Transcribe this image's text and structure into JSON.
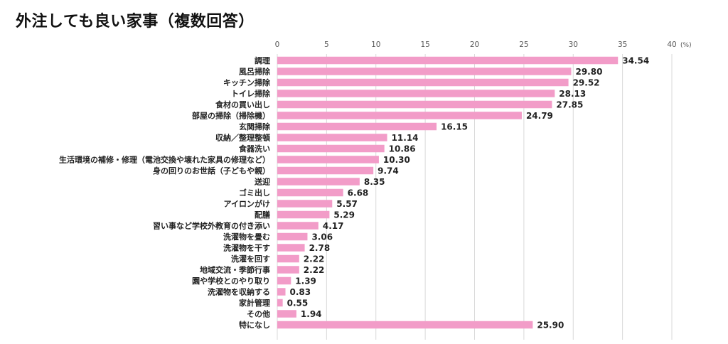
{
  "chart_data": {
    "type": "bar",
    "orientation": "horizontal",
    "title": "外注しても良い家事（複数回答）",
    "unit": "(%)",
    "xlim": [
      0,
      40
    ],
    "ticks": [
      0,
      5,
      10,
      15,
      20,
      25,
      30,
      35,
      40
    ],
    "grid": true,
    "bar_color": "#f29cc8",
    "categories": [
      "調理",
      "風呂掃除",
      "キッチン掃除",
      "トイレ掃除",
      "食材の買い出し",
      "部屋の掃除（掃除機）",
      "玄関掃除",
      "収納／整理整頓",
      "食器洗い",
      "生活環境の補修・修理（電池交換や壊れた家具の修理など）",
      "身の回りのお世話（子どもや親）",
      "送迎",
      "ゴミ出し",
      "アイロンがけ",
      "配膳",
      "習い事など学校外教育の付き添い",
      "洗濯物を畳む",
      "洗濯物を干す",
      "洗濯を回す",
      "地域交流・季節行事",
      "園や学校とのやり取り",
      "洗濯物を収納する",
      "家計管理",
      "その他",
      "特になし"
    ],
    "values": [
      34.54,
      29.8,
      29.52,
      28.13,
      27.85,
      24.79,
      16.15,
      11.14,
      10.86,
      10.3,
      9.74,
      8.35,
      6.68,
      5.57,
      5.29,
      4.17,
      3.06,
      2.78,
      2.22,
      2.22,
      1.39,
      0.83,
      0.55,
      1.94,
      25.9
    ],
    "labels": [
      "34.54",
      "29.80",
      "29.52",
      "28.13",
      "27.85",
      "24.79",
      "16.15",
      "11.14",
      "10.86",
      "10.30",
      "9.74",
      "8.35",
      "6.68",
      "5.57",
      "5.29",
      "4.17",
      "3.06",
      "2.78",
      "2.22",
      "2.22",
      "1.39",
      "0.83",
      "0.55",
      "1.94",
      "25.90"
    ]
  }
}
